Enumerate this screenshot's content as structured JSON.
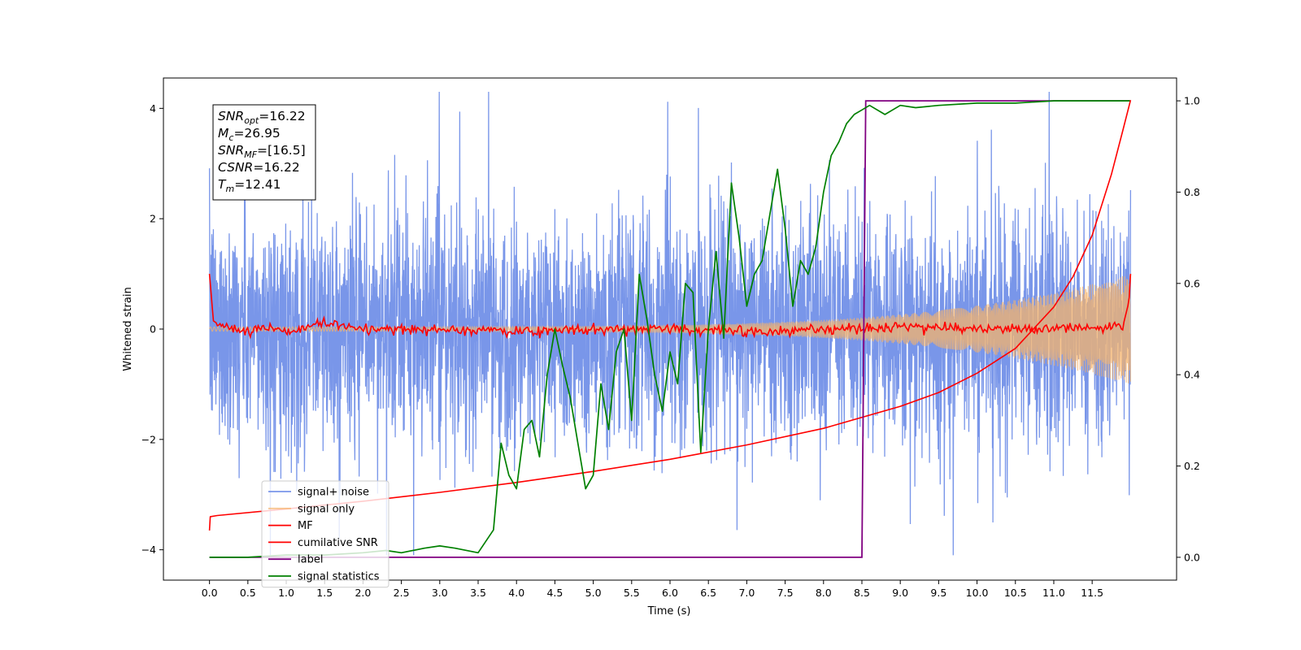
{
  "chart_data": {
    "type": "line",
    "xlabel": "Time (s)",
    "ylabel_left": "Whitened strain",
    "ylabel_right": "",
    "xlim": [
      -0.6,
      12.6
    ],
    "ylim_left": [
      -4.55,
      4.55
    ],
    "ylim_right": [
      -0.05,
      1.05
    ],
    "x_ticks": [
      0.0,
      0.5,
      1.0,
      1.5,
      2.0,
      2.5,
      3.0,
      3.5,
      4.0,
      4.5,
      5.0,
      5.5,
      6.0,
      6.5,
      7.0,
      7.5,
      8.0,
      8.5,
      9.0,
      9.5,
      10.0,
      10.5,
      11.0,
      11.5
    ],
    "x_tick_labels": [
      "0.0",
      "0.5",
      "1.0",
      "1.5",
      "2.0",
      "2.5",
      "3.0",
      "3.5",
      "4.0",
      "4.5",
      "5.0",
      "5.5",
      "6.0",
      "6.5",
      "7.0",
      "7.5",
      "8.0",
      "8.5",
      "9.0",
      "9.5",
      "10.0",
      "10.5",
      "11.0",
      "11.5"
    ],
    "y_ticks_left": [
      -4,
      -2,
      0,
      2,
      4
    ],
    "y_tick_labels_left": [
      "−4",
      "−2",
      "0",
      "2",
      "4"
    ],
    "y_ticks_right": [
      0.0,
      0.2,
      0.4,
      0.6,
      0.8,
      1.0
    ],
    "y_tick_labels_right": [
      "0.0",
      "0.2",
      "0.4",
      "0.6",
      "0.8",
      "1.0"
    ],
    "grid": false,
    "legend_position": "lower-left",
    "series": [
      {
        "name": "signal+ noise",
        "axis": "left",
        "color": "#6688e6",
        "style": "dense noise, roughly between -2.5 and 2.5 with spikes to about ±4"
      },
      {
        "name": "signal only",
        "axis": "left",
        "color": "#f5b36b",
        "style": "chirp oscillation, amplitude growing from ~0.05 to ~1.0 toward t=12"
      },
      {
        "name": "MF",
        "axis": "left",
        "color": "#ff0000",
        "x": [
          0.0,
          0.05,
          0.1,
          0.3,
          0.5,
          0.8,
          1.0,
          1.5,
          2.0,
          3.0,
          4.0,
          5.0,
          6.0,
          7.0,
          8.0,
          9.0,
          10.0,
          11.0,
          11.9,
          11.98,
          12.0
        ],
        "y": [
          1.0,
          0.15,
          0.1,
          0.0,
          -0.05,
          0.05,
          -0.05,
          0.1,
          0.0,
          0.0,
          -0.05,
          0.0,
          0.0,
          -0.05,
          0.0,
          0.05,
          0.0,
          0.0,
          0.05,
          0.5,
          1.0
        ]
      },
      {
        "name": "cumilative SNR",
        "axis": "left",
        "color": "#ff0000",
        "x": [
          0.0,
          0.01,
          0.1,
          1.0,
          2.0,
          3.0,
          4.0,
          5.0,
          6.0,
          7.0,
          8.0,
          9.0,
          9.5,
          10.0,
          10.5,
          11.0,
          11.25,
          11.5,
          11.75,
          11.9,
          12.0
        ],
        "y": [
          -3.65,
          -3.4,
          -3.38,
          -3.26,
          -3.12,
          -2.96,
          -2.78,
          -2.58,
          -2.36,
          -2.1,
          -1.8,
          -1.4,
          -1.15,
          -0.8,
          -0.35,
          0.4,
          0.95,
          1.7,
          2.8,
          3.6,
          4.15
        ]
      },
      {
        "name": "label",
        "axis": "right",
        "color": "#800080",
        "x": [
          0.0,
          8.5,
          8.55,
          11.99
        ],
        "y": [
          0.0,
          0.0,
          1.0,
          1.0
        ]
      },
      {
        "name": "signal statistics",
        "axis": "right",
        "color": "#008000",
        "x": [
          0.0,
          0.5,
          1.0,
          1.5,
          2.0,
          2.3,
          2.5,
          2.8,
          3.0,
          3.2,
          3.5,
          3.7,
          3.8,
          3.9,
          4.0,
          4.1,
          4.2,
          4.3,
          4.4,
          4.5,
          4.6,
          4.7,
          4.8,
          4.9,
          5.0,
          5.1,
          5.2,
          5.3,
          5.4,
          5.5,
          5.6,
          5.7,
          5.8,
          5.9,
          6.0,
          6.1,
          6.2,
          6.3,
          6.4,
          6.5,
          6.6,
          6.7,
          6.8,
          6.9,
          7.0,
          7.1,
          7.2,
          7.3,
          7.4,
          7.5,
          7.6,
          7.7,
          7.8,
          7.9,
          8.0,
          8.1,
          8.2,
          8.3,
          8.4,
          8.5,
          8.6,
          8.8,
          9.0,
          9.2,
          9.5,
          10.0,
          10.5,
          11.0,
          11.5,
          11.99
        ],
        "y": [
          0.0,
          0.0,
          0.005,
          0.005,
          0.01,
          0.015,
          0.01,
          0.02,
          0.025,
          0.02,
          0.01,
          0.06,
          0.25,
          0.18,
          0.15,
          0.28,
          0.3,
          0.22,
          0.4,
          0.5,
          0.42,
          0.35,
          0.25,
          0.15,
          0.18,
          0.38,
          0.28,
          0.45,
          0.5,
          0.3,
          0.62,
          0.52,
          0.4,
          0.32,
          0.45,
          0.38,
          0.6,
          0.58,
          0.23,
          0.5,
          0.67,
          0.48,
          0.82,
          0.7,
          0.55,
          0.62,
          0.65,
          0.75,
          0.85,
          0.72,
          0.55,
          0.65,
          0.62,
          0.68,
          0.8,
          0.88,
          0.91,
          0.95,
          0.97,
          0.98,
          0.99,
          0.97,
          0.99,
          0.985,
          0.99,
          0.995,
          0.995,
          1.0,
          1.0,
          1.0
        ]
      }
    ],
    "annotation": {
      "lines": [
        {
          "sym": "SNR",
          "sub": "opt",
          "value": "=16.22"
        },
        {
          "sym": "M",
          "sub": "c",
          "value": "=26.95"
        },
        {
          "sym": "SNR",
          "sub": "MF",
          "value": "=[16.5]"
        },
        {
          "sym": "CSNR",
          "sub": "",
          "value": "=16.22"
        },
        {
          "sym": "T",
          "sub": "m",
          "value": "=12.41"
        }
      ]
    }
  }
}
